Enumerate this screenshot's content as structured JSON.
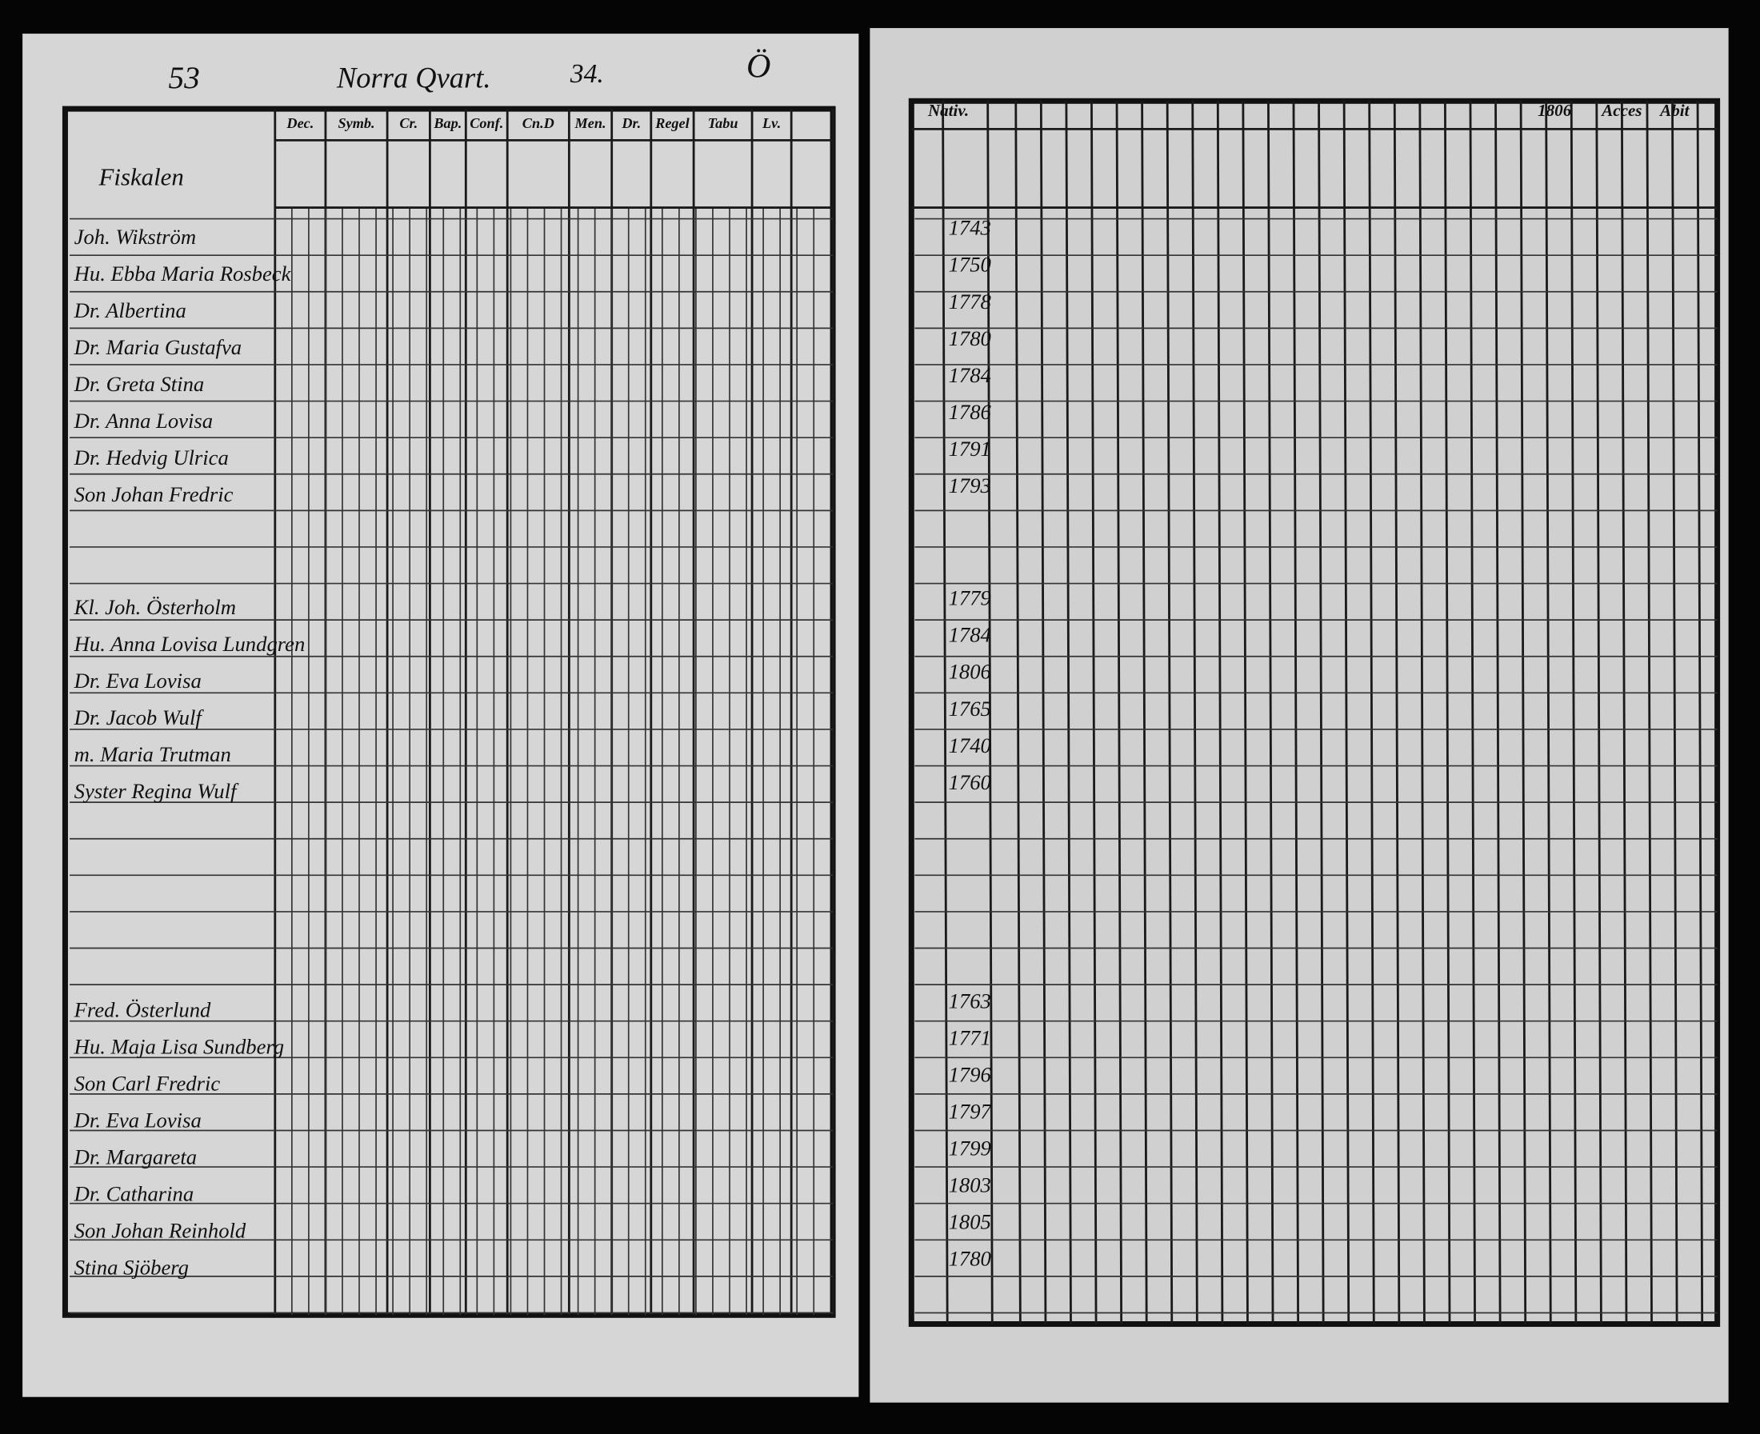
{
  "left_page": {
    "page_number": "53",
    "title": "Norra Qvart.",
    "house_number": "34.",
    "column_headers": [
      "Dec.",
      "Symb.",
      "Cr.",
      "Bap.",
      "Conf.",
      "Cn.D",
      "Men.",
      "Dr.",
      "Regel",
      "Tabu",
      "Lv."
    ],
    "household_heading": "Fiskalen"
  },
  "right_page": {
    "mark": "Ö",
    "column_headers": [
      "Nativ.",
      "1806",
      "Acces",
      "Abit"
    ]
  },
  "households": [
    {
      "members": [
        {
          "name": "Joh. Wikström",
          "birth_year": 1743
        },
        {
          "name": "Hu. Ebba Maria Rosbeck",
          "birth_year": 1750
        },
        {
          "name": "Dr. Albertina",
          "birth_year": 1778
        },
        {
          "name": "Dr. Maria Gustafva",
          "birth_year": 1780
        },
        {
          "name": "Dr. Greta Stina",
          "birth_year": 1784
        },
        {
          "name": "Dr. Anna Lovisa",
          "birth_year": 1786
        },
        {
          "name": "Dr. Hedvig Ulrica",
          "birth_year": 1791
        },
        {
          "name": "Son Johan Fredric",
          "birth_year": 1793
        }
      ]
    },
    {
      "members": [
        {
          "name": "Kl. Joh. Österholm",
          "birth_year": 1779
        },
        {
          "name": "Hu. Anna Lovisa Lundgren",
          "birth_year": 1784
        },
        {
          "name": "Dr. Eva Lovisa",
          "birth_year": 1806
        },
        {
          "name": "Dr. Jacob Wulf",
          "birth_year": 1765
        },
        {
          "name": "m. Maria Trutman",
          "birth_year": 1740
        },
        {
          "name": "Syster Regina Wulf",
          "birth_year": 1760
        }
      ]
    },
    {
      "members": [
        {
          "name": "Fred. Österlund",
          "birth_year": 1763
        },
        {
          "name": "Hu. Maja Lisa Sundberg",
          "birth_year": 1771
        },
        {
          "name": "Son Carl Fredric",
          "birth_year": 1796
        },
        {
          "name": "Dr. Eva Lovisa",
          "birth_year": 1797
        },
        {
          "name": "Dr. Margareta",
          "birth_year": 1799
        },
        {
          "name": "Dr. Catharina",
          "birth_year": 1803
        },
        {
          "name": "Son Johan Reinhold",
          "birth_year": 1805
        },
        {
          "name": "Stina Sjöberg",
          "birth_year": 1780
        }
      ]
    }
  ]
}
